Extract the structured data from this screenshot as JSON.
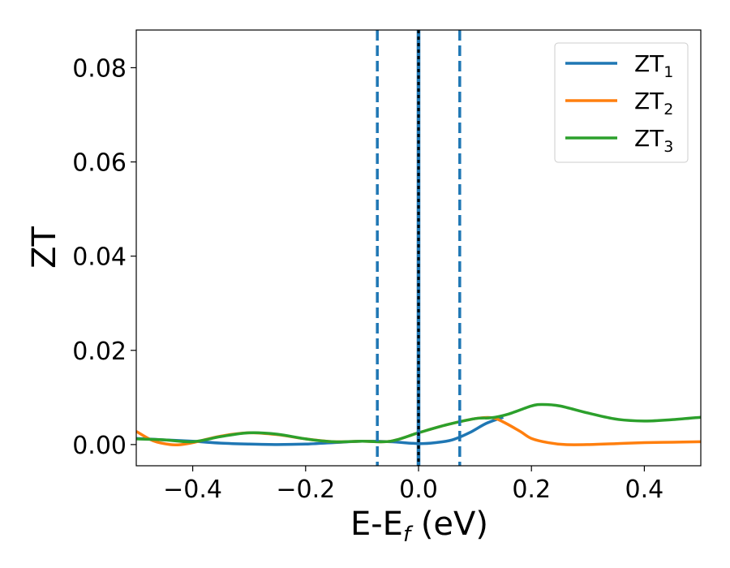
{
  "chart_data": {
    "type": "line",
    "title": "",
    "xlabel_main": "E-E",
    "xlabel_sub": "f",
    "xlabel_unit": " (eV)",
    "ylabel": "ZT",
    "xlim": [
      -0.5,
      0.5
    ],
    "ylim": [
      -0.0045,
      0.088
    ],
    "grid": false,
    "legend_position": "top-right",
    "x_ticks": [
      -0.4,
      -0.2,
      0.0,
      0.2,
      0.4
    ],
    "x_tick_labels": [
      "−0.4",
      "−0.2",
      "0.0",
      "0.2",
      "0.4"
    ],
    "y_ticks": [
      0.0,
      0.02,
      0.04,
      0.06,
      0.08
    ],
    "y_tick_labels": [
      "0.00",
      "0.02",
      "0.04",
      "0.06",
      "0.08"
    ],
    "vertical_lines": [
      {
        "x": -0.073,
        "style": "dashed",
        "color": "#1f77b4"
      },
      {
        "x": 0.0,
        "style": "solid",
        "color": "#1f77b4"
      },
      {
        "x": 0.0,
        "style": "dotted",
        "color": "#000000"
      },
      {
        "x": 0.073,
        "style": "dashed",
        "color": "#1f77b4"
      }
    ],
    "series": [
      {
        "name": "ZT",
        "subscript": "1",
        "color": "#1f77b4",
        "x": [
          -0.5,
          -0.45,
          -0.4,
          -0.35,
          -0.3,
          -0.25,
          -0.2,
          -0.15,
          -0.1,
          -0.05,
          0.0,
          0.03,
          0.06,
          0.09,
          0.12,
          0.15
        ],
        "y": [
          0.0013,
          0.001,
          0.0007,
          0.0003,
          0.0001,
          0.0,
          0.0001,
          0.0004,
          0.0007,
          0.0006,
          0.0002,
          0.0004,
          0.001,
          0.0025,
          0.0045,
          0.0058
        ]
      },
      {
        "name": "ZT",
        "subscript": "2",
        "color": "#ff7f0e",
        "x": [
          -0.5,
          -0.47,
          -0.44,
          -0.42,
          -0.4,
          -0.35,
          -0.3,
          -0.25,
          -0.2,
          -0.15,
          -0.1,
          -0.05,
          0.0,
          0.05,
          0.1,
          0.13,
          0.15,
          0.18,
          0.2,
          0.23,
          0.26,
          0.3,
          0.35,
          0.4,
          0.45,
          0.5
        ],
        "y": [
          0.0028,
          0.0008,
          0.0,
          0.0,
          0.0004,
          0.0018,
          0.0025,
          0.0021,
          0.0012,
          0.0006,
          0.0007,
          0.0007,
          0.0025,
          0.0042,
          0.0055,
          0.0057,
          0.0048,
          0.0028,
          0.0013,
          0.0004,
          0.0,
          0.0,
          0.0002,
          0.0004,
          0.0005,
          0.0006
        ]
      },
      {
        "name": "ZT",
        "subscript": "3",
        "color": "#2ca02c",
        "x": [
          -0.5,
          -0.45,
          -0.4,
          -0.35,
          -0.3,
          -0.25,
          -0.2,
          -0.15,
          -0.1,
          -0.05,
          0.0,
          0.05,
          0.1,
          0.13,
          0.16,
          0.2,
          0.22,
          0.25,
          0.3,
          0.35,
          0.4,
          0.45,
          0.5
        ],
        "y": [
          0.0012,
          0.001,
          0.0006,
          0.0017,
          0.0025,
          0.0022,
          0.0012,
          0.0006,
          0.0007,
          0.0007,
          0.0025,
          0.0042,
          0.0055,
          0.0057,
          0.0065,
          0.0082,
          0.0085,
          0.0082,
          0.0067,
          0.0054,
          0.005,
          0.0053,
          0.0058
        ]
      }
    ]
  }
}
